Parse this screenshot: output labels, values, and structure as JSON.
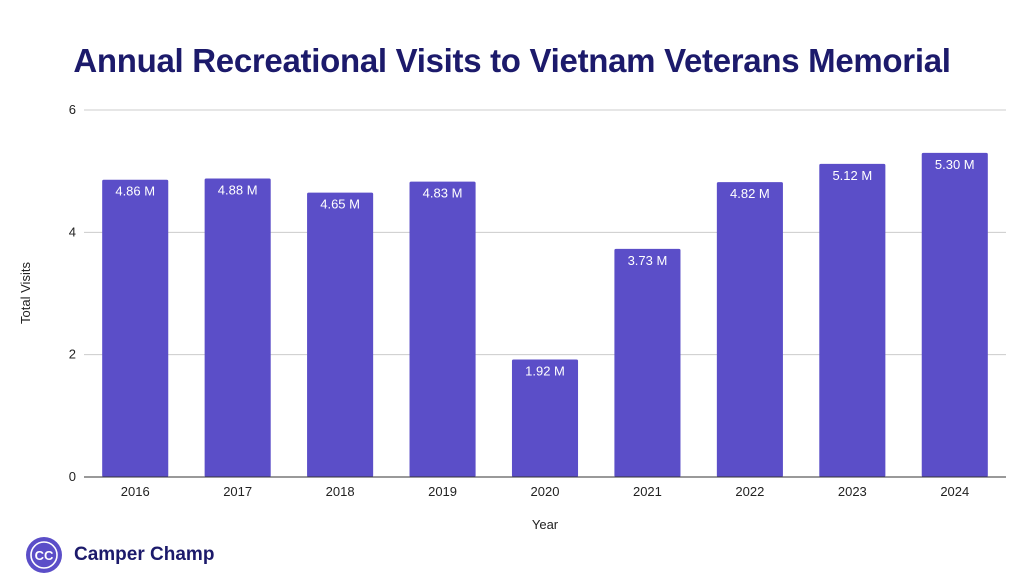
{
  "chart_data": {
    "type": "bar",
    "title": "Annual Recreational Visits to Vietnam Veterans Memorial",
    "xlabel": "Year",
    "ylabel": "Total Visits",
    "categories": [
      "2016",
      "2017",
      "2018",
      "2019",
      "2020",
      "2021",
      "2022",
      "2023",
      "2024"
    ],
    "values": [
      4.86,
      4.88,
      4.65,
      4.83,
      1.92,
      3.73,
      4.82,
      5.12,
      5.3
    ],
    "data_labels": [
      "4.86 M",
      "4.88 M",
      "4.65 M",
      "4.83 M",
      "1.92 M",
      "3.73 M",
      "4.82 M",
      "5.12 M",
      "5.30 M"
    ],
    "ylim": [
      0,
      6
    ],
    "yticks": [
      0,
      2,
      4,
      6
    ],
    "grid": true,
    "legend": "none"
  },
  "colors": {
    "bar": "#5b4ec8",
    "title": "#1c1a6b",
    "grid": "#cccccc"
  },
  "brand": {
    "logo_text": "CC",
    "name": "Camper Champ"
  }
}
